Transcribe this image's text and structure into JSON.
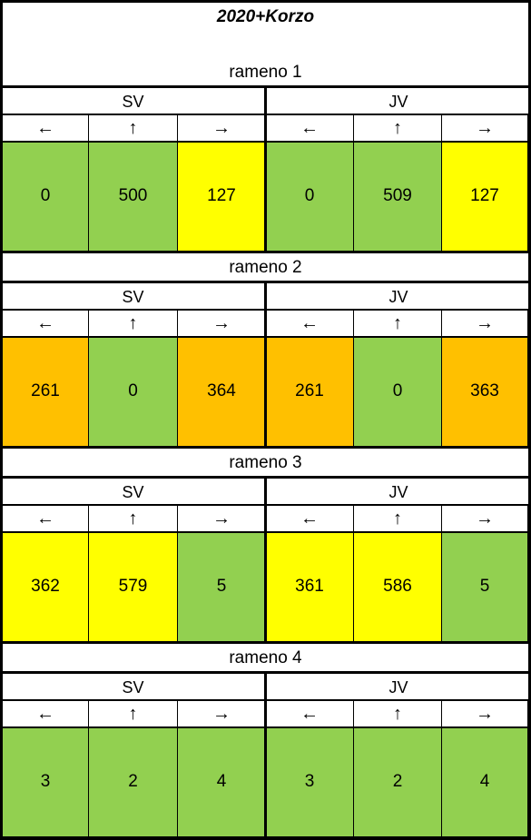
{
  "title": "2020+Korzo",
  "colors": {
    "green": "#92D050",
    "yellow": "#FFFF00",
    "orange": "#FFC000"
  },
  "directions": {
    "left": "SV",
    "right": "JV"
  },
  "arrows": [
    "←",
    "↑",
    "→",
    "←",
    "↑",
    "→"
  ],
  "sections": [
    {
      "label": "rameno 1",
      "values": [
        "0",
        "500",
        "127",
        "0",
        "509",
        "127"
      ],
      "fills": [
        "green",
        "green",
        "yellow",
        "green",
        "green",
        "yellow"
      ]
    },
    {
      "label": "rameno 2",
      "values": [
        "261",
        "0",
        "364",
        "261",
        "0",
        "363"
      ],
      "fills": [
        "orange",
        "green",
        "orange",
        "orange",
        "green",
        "orange"
      ]
    },
    {
      "label": "rameno 3",
      "values": [
        "362",
        "579",
        "5",
        "361",
        "586",
        "5"
      ],
      "fills": [
        "yellow",
        "yellow",
        "green",
        "yellow",
        "yellow",
        "green"
      ]
    },
    {
      "label": "rameno 4",
      "values": [
        "3",
        "2",
        "4",
        "3",
        "2",
        "4"
      ],
      "fills": [
        "green",
        "green",
        "green",
        "green",
        "green",
        "green"
      ]
    }
  ]
}
